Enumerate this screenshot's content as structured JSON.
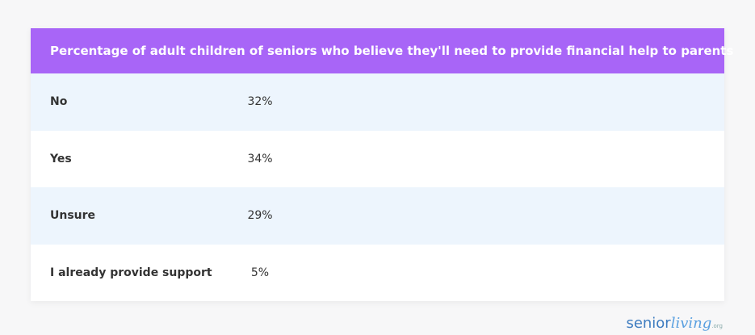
{
  "table": {
    "title": "Percentage of adult children of seniors who believe they'll need to provide financial help to parents",
    "rows": [
      [
        "No",
        "32%"
      ],
      [
        "Yes",
        "34%"
      ],
      [
        "Unsure",
        "29%"
      ],
      [
        "I already provide support",
        "5%"
      ]
    ]
  },
  "logo": {
    "first": "senior",
    "second": "living",
    "suffix": ".org"
  }
}
